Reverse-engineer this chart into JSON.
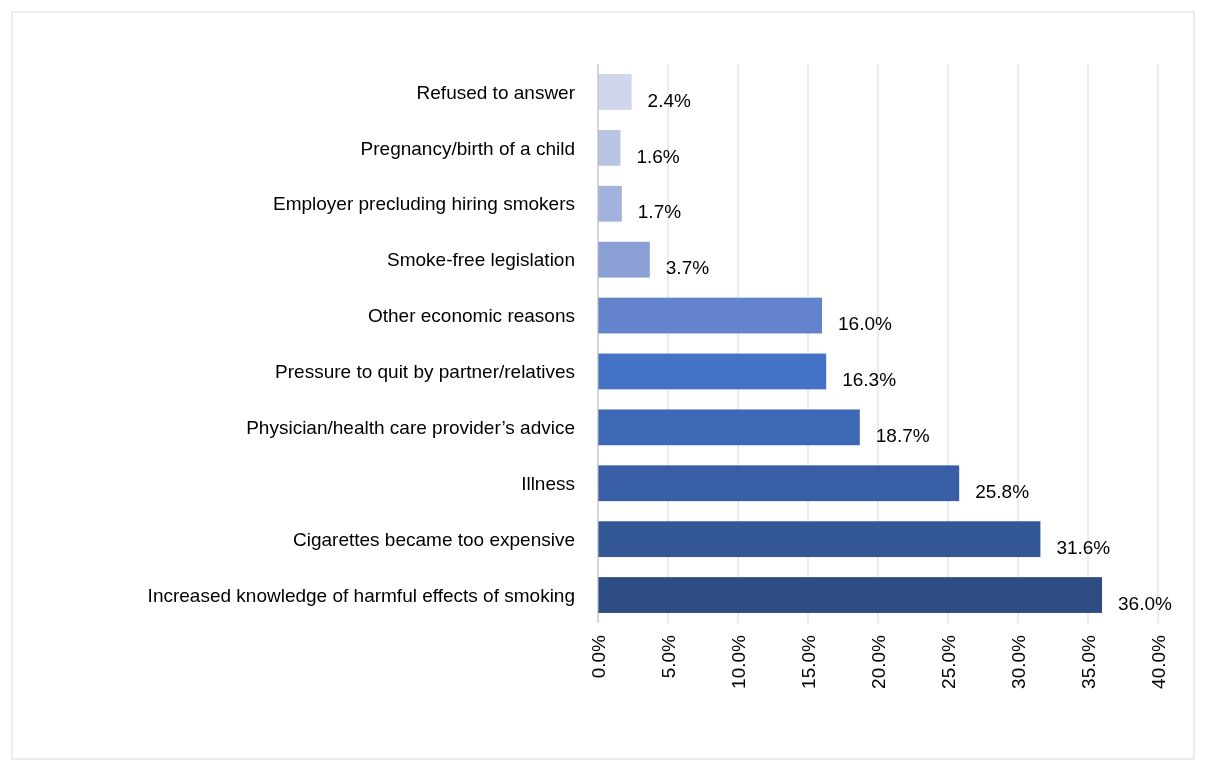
{
  "chart_data": {
    "type": "bar",
    "orientation": "horizontal",
    "categories": [
      "Refused to answer",
      "Pregnancy/birth of a child",
      "Employer precluding hiring smokers",
      "Smoke-free legislation",
      "Other economic reasons",
      "Pressure to quit by partner/relatives",
      "Physician/health care provider’s advice",
      "Illness",
      "Cigarettes became too expensive",
      "Increased knowledge of harmful effects of smoking"
    ],
    "values": [
      2.4,
      1.6,
      1.7,
      3.7,
      16.0,
      16.3,
      18.7,
      25.8,
      31.6,
      36.0
    ],
    "value_labels": [
      "2.4%",
      "1.6%",
      "1.7%",
      "3.7%",
      "16.0%",
      "16.3%",
      "18.7%",
      "25.8%",
      "31.6%",
      "36.0%"
    ],
    "colors": [
      "#cfd5ea",
      "#b9c3e4",
      "#a3b1de",
      "#8a9fd6",
      "#6384cc",
      "#4472c4",
      "#3d68b5",
      "#385fa6",
      "#345796",
      "#2e4c83"
    ],
    "xlim": [
      0,
      40
    ],
    "xticks": [
      {
        "value": 0,
        "label": "0.0%"
      },
      {
        "value": 5,
        "label": "5.0%"
      },
      {
        "value": 10,
        "label": "10.0%"
      },
      {
        "value": 15,
        "label": "15.0%"
      },
      {
        "value": 20,
        "label": "20.0%"
      },
      {
        "value": 25,
        "label": "25.0%"
      },
      {
        "value": 30,
        "label": "30.0%"
      },
      {
        "value": 35,
        "label": "35.0%"
      },
      {
        "value": 40,
        "label": "40.0%"
      }
    ],
    "grid": "x"
  }
}
